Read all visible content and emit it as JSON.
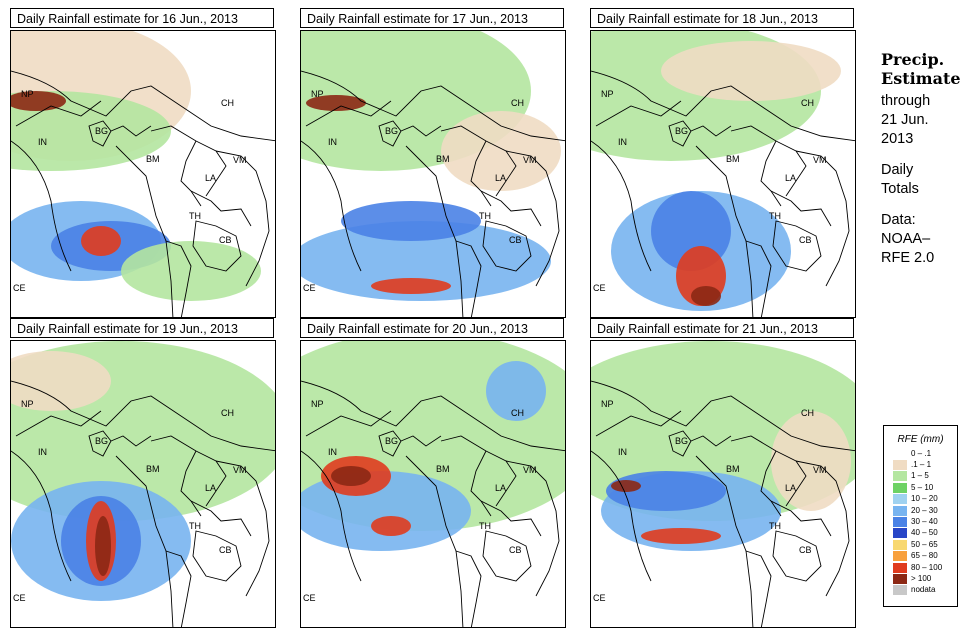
{
  "panels": [
    {
      "title": "Daily Rainfall estimate for  16 Jun., 2013",
      "intensity": 2
    },
    {
      "title": "Daily Rainfall estimate for  17 Jun., 2013",
      "intensity": 1
    },
    {
      "title": "Daily Rainfall estimate for  18 Jun., 2013",
      "intensity": 2
    },
    {
      "title": "Daily Rainfall estimate for  19 Jun., 2013",
      "intensity": 3
    },
    {
      "title": "Daily Rainfall estimate for  20 Jun., 2013",
      "intensity": 3
    },
    {
      "title": "Daily Rainfall estimate for  21 Jun., 2013",
      "intensity": 2
    }
  ],
  "country_labels": [
    "NP",
    "IN",
    "BG",
    "CH",
    "BM",
    "VM",
    "LA",
    "TH",
    "CB",
    "CE"
  ],
  "sidebar": {
    "title_line1": "Precip.",
    "title_line2": "Estimate",
    "through_label": "through",
    "through_date_line1": "21 Jun.",
    "through_date_line2": "2013",
    "daily_line1": "Daily",
    "daily_line2": "Totals",
    "data_line1": "Data:",
    "data_line2": "NOAA–",
    "data_line3": "RFE 2.0"
  },
  "legend": {
    "title": "RFE (mm)",
    "items": [
      {
        "label": "0 – .1",
        "color": "#ffffff"
      },
      {
        "label": ".1 – 1",
        "color": "#f0dcc3"
      },
      {
        "label": "1 – 5",
        "color": "#b4e6a0"
      },
      {
        "label": "5 – 10",
        "color": "#6ed264"
      },
      {
        "label": "10 – 20",
        "color": "#a0d2f0"
      },
      {
        "label": "20 – 30",
        "color": "#78b4f0"
      },
      {
        "label": "30 – 40",
        "color": "#4a82e6"
      },
      {
        "label": "40 – 50",
        "color": "#2846c8"
      },
      {
        "label": "50 – 65",
        "color": "#f8d870"
      },
      {
        "label": "65 – 80",
        "color": "#f8a03c"
      },
      {
        "label": "80 – 100",
        "color": "#e03c1e"
      },
      {
        "label": "> 100",
        "color": "#8c2814"
      },
      {
        "label": "nodata",
        "color": "#c8c8c8"
      }
    ]
  }
}
